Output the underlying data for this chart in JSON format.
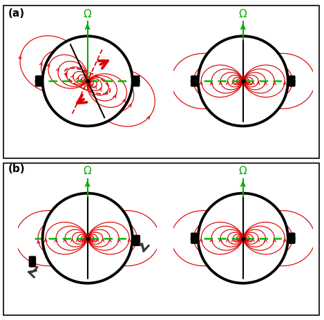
{
  "fig_width": 4.69,
  "fig_height": 4.64,
  "dpi": 100,
  "field_color": "#dd0000",
  "equator_color": "#00bb00",
  "omega_color": "#00aa00",
  "shells_internal": [
    0.08,
    0.14,
    0.22,
    0.34,
    0.5,
    0.7,
    0.93
  ],
  "shells_external": [
    1.1,
    1.6
  ],
  "circle_lw": 2.8,
  "dipole_axis_lw": 1.5
}
